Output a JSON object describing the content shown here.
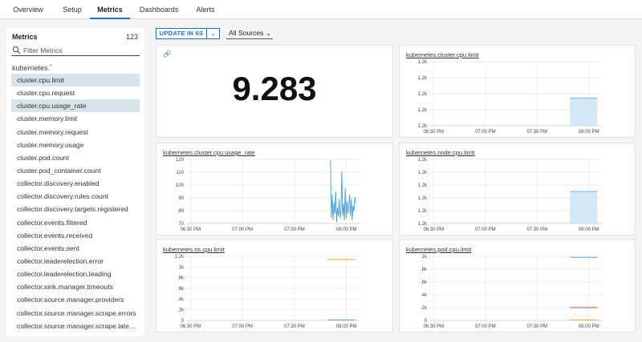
{
  "tabs": [
    {
      "label": "Overview",
      "active": false
    },
    {
      "label": "Setup",
      "active": false
    },
    {
      "label": "Metrics",
      "active": true
    },
    {
      "label": "Dashboards",
      "active": false
    },
    {
      "label": "Alerts",
      "active": false
    }
  ],
  "sidebar": {
    "title": "Metrics",
    "count": "123",
    "search_placeholder": "Filter Metrics",
    "group": "kubernetes.",
    "items": [
      {
        "label": "cluster.cpu.limit",
        "selected": true
      },
      {
        "label": "cluster.cpu.request",
        "selected": false
      },
      {
        "label": "cluster.cpu.usage_rate",
        "selected": true
      },
      {
        "label": "cluster.memory.limit",
        "selected": false
      },
      {
        "label": "cluster.memory.request",
        "selected": false
      },
      {
        "label": "cluster.memory.usage",
        "selected": false
      },
      {
        "label": "cluster.pod.count",
        "selected": false
      },
      {
        "label": "cluster.pod_container.count",
        "selected": false
      },
      {
        "label": "collector.discovery.enabled",
        "selected": false
      },
      {
        "label": "collector.discovery.rules.count",
        "selected": false
      },
      {
        "label": "collector.discovery.targets.registered",
        "selected": false
      },
      {
        "label": "collector.events.filtered",
        "selected": false
      },
      {
        "label": "collector.events.received",
        "selected": false
      },
      {
        "label": "collector.events.sent",
        "selected": false
      },
      {
        "label": "collector.leaderelection.error",
        "selected": false
      },
      {
        "label": "collector.leaderelection.leading",
        "selected": false
      },
      {
        "label": "collector.sink.manager.timeouts",
        "selected": false
      },
      {
        "label": "collector.source.manager.providers",
        "selected": false
      },
      {
        "label": "collector.source.manager.scrape.errors",
        "selected": false
      },
      {
        "label": "collector.source.manager.scrape.latency",
        "selected": false
      }
    ]
  },
  "controls": {
    "update_label": "UPDATE IN 6S",
    "source_label": "All Sources"
  },
  "colors": {
    "accent": "#1f6ebf",
    "series_blue": "#4a9fd8",
    "series_orange": "#f0a030",
    "series_red": "#d04a2a",
    "series_area": "#cfe4f5"
  },
  "single_stat": {
    "value": "9.283"
  },
  "chart_data": [
    {
      "id": "cpu_limit",
      "type": "area",
      "title": "kubernetes.cluster.cpu.limit",
      "y_ticks": [
        "1.2k",
        "1.2k",
        "1.2k",
        "1.2k",
        "1.2k"
      ],
      "x_ticks": [
        "06:30 PM",
        "07:00 PM",
        "07:30 PM",
        "08:00 PM"
      ],
      "xlim_min": [
        0,
        100
      ],
      "series": [
        {
          "color": "#4a9fd8",
          "x": [
            81,
            97
          ],
          "y": [
            0.57,
            0.57
          ]
        }
      ]
    },
    {
      "id": "cpu_usage_rate",
      "type": "line",
      "title": "kubernetes.cluster.cpu.usage_rate",
      "y_ticks": [
        "120",
        "110",
        "100",
        "90",
        "80",
        "70"
      ],
      "ylim": [
        65,
        125
      ],
      "x_ticks": [
        "06:30 PM",
        "07:00 PM",
        "07:30 PM",
        "08:00 PM"
      ],
      "xlim_min": [
        0,
        100
      ],
      "series": [
        {
          "color": "#4a9fd8",
          "x": [
            82.8,
            83.3,
            83.8,
            84.3,
            84.8,
            85.3,
            85.8,
            86.3,
            86.8,
            87.3,
            87.8,
            88.3,
            88.8,
            89.3,
            89.8,
            90.3,
            90.8,
            91.3,
            91.8,
            92.3,
            92.8,
            93.3,
            93.8,
            94.3,
            94.8,
            95.3,
            95.8,
            96.3,
            96.8,
            97.3
          ],
          "y": [
            124,
            70,
            92,
            68,
            85,
            74,
            95,
            66,
            80,
            72,
            88,
            70,
            76,
            114,
            72,
            84,
            68,
            98,
            70,
            86,
            74,
            80,
            92,
            72,
            88,
            68,
            82,
            76,
            90,
            84
          ]
        }
      ]
    },
    {
      "id": "node_cpu_limit",
      "type": "area",
      "title": "kubernetes.node.cpu.limit",
      "y_ticks": [
        "1.2k",
        "1.2k",
        "1.2k",
        "1.2k",
        "1.2k",
        "1.2k"
      ],
      "x_ticks": [
        "06:30 PM",
        "07:00 PM",
        "07:30 PM",
        "08:00 PM"
      ],
      "xlim_min": [
        0,
        100
      ],
      "series": [
        {
          "color": "#4a9fd8",
          "x": [
            81,
            97
          ],
          "y": [
            0.5,
            0.5
          ]
        }
      ]
    },
    {
      "id": "ns_cpu_limit",
      "type": "line",
      "title": "kubernetes.ns.cpu.limit",
      "y_ticks": [
        "1.2k",
        "1k",
        ".8k",
        ".6k",
        ".4k",
        ".2k",
        "0"
      ],
      "ylim": [
        0,
        1200
      ],
      "x_ticks": [
        "06:30 PM",
        "07:00 PM",
        "07:30 PM",
        "08:00 PM"
      ],
      "xlim_min": [
        0,
        100
      ],
      "series": [
        {
          "color": "#f0a030",
          "x": [
            81,
            97
          ],
          "y": [
            1140,
            1140
          ]
        },
        {
          "color": "#4a9fd8",
          "x": [
            81,
            97
          ],
          "y": [
            8,
            8
          ]
        }
      ]
    },
    {
      "id": "pod_cpu_limit",
      "type": "line",
      "title": "kubernetes.pod.cpu.limit",
      "y_ticks": [
        "1k",
        ".8k",
        ".6k",
        ".4k",
        ".2k",
        "0"
      ],
      "ylim": [
        0,
        1000
      ],
      "x_ticks": [
        "06:30 PM",
        "07:00 PM",
        "07:30 PM",
        "08:00 PM"
      ],
      "xlim_min": [
        0,
        100
      ],
      "series": [
        {
          "color": "#4a9fd8",
          "x": [
            81,
            97
          ],
          "y": [
            985,
            985
          ]
        },
        {
          "color": "#d04a2a",
          "x": [
            81,
            97
          ],
          "y": [
            200,
            200
          ]
        },
        {
          "color": "#f0a030",
          "x": [
            81,
            97
          ],
          "y": [
            5,
            5
          ]
        }
      ]
    }
  ]
}
